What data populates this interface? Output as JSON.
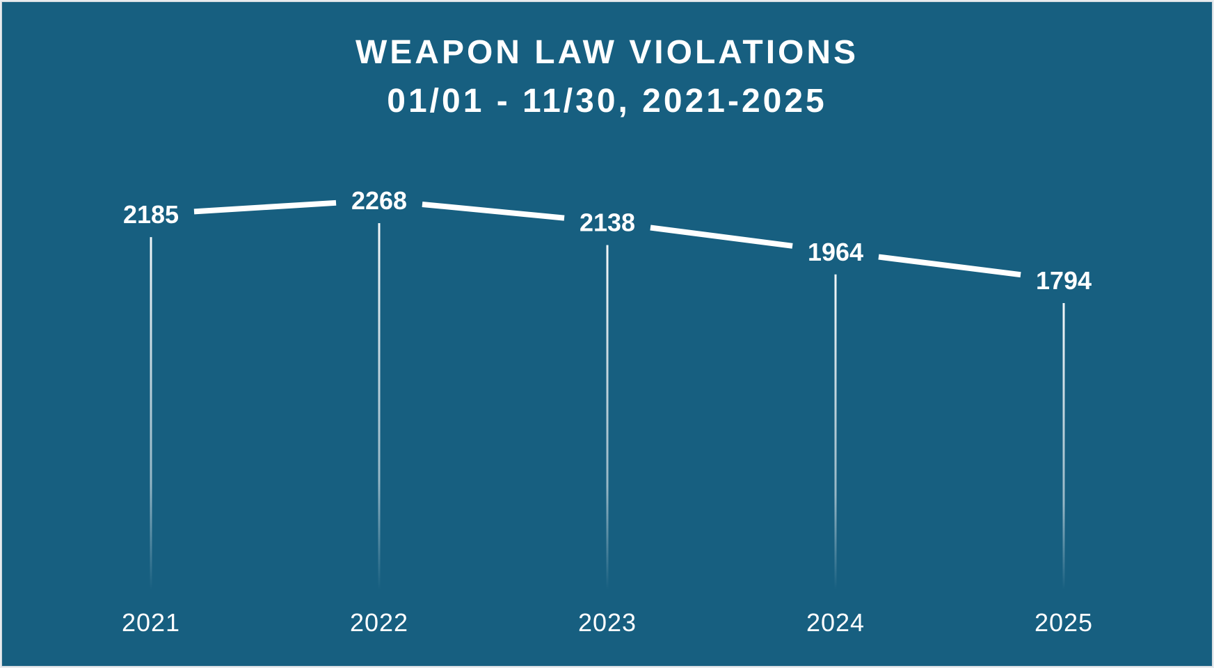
{
  "chart_data": {
    "type": "line",
    "title": "WEAPON LAW VIOLATIONS",
    "subtitle": "01/01 - 11/30, 2021-2025",
    "categories": [
      "2021",
      "2022",
      "2023",
      "2024",
      "2025"
    ],
    "series": [
      {
        "values": [
          2185,
          2268,
          2138,
          1964,
          1794
        ]
      }
    ],
    "data_labels": true,
    "grid": false,
    "legend": "none",
    "colors": {
      "background": "#175f80",
      "line": "#ffffff",
      "text": "#ffffff"
    }
  }
}
